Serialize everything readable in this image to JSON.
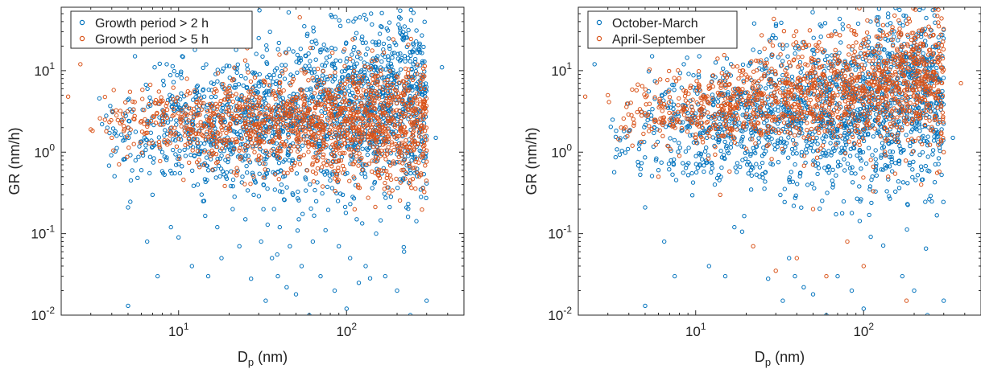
{
  "chart_data": [
    {
      "type": "scatter",
      "xlabel": "D",
      "xlabel_sub": "p",
      "xlabel_unit": " (nm)",
      "ylabel": "GR (nm/h)",
      "xscale": "log",
      "yscale": "log",
      "xlim": [
        2,
        500
      ],
      "ylim": [
        0.01,
        60
      ],
      "x_tick_labels": [
        {
          "value": 10,
          "base": "10",
          "exp": "1"
        },
        {
          "value": 100,
          "base": "10",
          "exp": "2"
        }
      ],
      "y_tick_labels": [
        {
          "value": 0.01,
          "base": "10",
          "exp": "-2"
        },
        {
          "value": 0.1,
          "base": "10",
          "exp": "-1"
        },
        {
          "value": 1,
          "base": "10",
          "exp": "0"
        },
        {
          "value": 10,
          "base": "10",
          "exp": "1"
        }
      ],
      "legend_position": "top-left",
      "grid": false,
      "series": [
        {
          "name": "Growth period > 2 h",
          "color": "#0072BD",
          "points": [
            [
              3.5,
              2.2
            ],
            [
              4.2,
              1.8
            ],
            [
              4.8,
              3.0
            ],
            [
              5.2,
              0.45
            ],
            [
              5.0,
              0.21
            ],
            [
              5.0,
              0.013
            ],
            [
              5.5,
              15
            ],
            [
              6.0,
              0.6
            ],
            [
              6.5,
              0.08
            ],
            [
              7.0,
              0.3
            ],
            [
              7.2,
              11
            ],
            [
              7.5,
              0.03
            ],
            [
              8.0,
              1.0
            ],
            [
              8.5,
              12
            ],
            [
              9.0,
              0.12
            ],
            [
              9.5,
              0.55
            ],
            [
              10.0,
              0.09
            ],
            [
              10.5,
              15
            ],
            [
              11.0,
              0.9
            ],
            [
              12.0,
              0.04
            ],
            [
              12.5,
              18
            ],
            [
              13.0,
              0.4
            ],
            [
              14.0,
              0.25
            ],
            [
              15.0,
              0.03
            ],
            [
              15.5,
              22
            ],
            [
              16.0,
              0.6
            ],
            [
              17.0,
              0.12
            ],
            [
              18.0,
              0.05
            ],
            [
              19.0,
              0.8
            ],
            [
              20.0,
              1.3
            ],
            [
              21.0,
              0.2
            ],
            [
              22.0,
              18
            ],
            [
              23.0,
              0.07
            ],
            [
              24.0,
              0.5
            ],
            [
              25.0,
              0.15
            ],
            [
              26.0,
              0.9
            ],
            [
              27.0,
              0.028
            ],
            [
              28.0,
              0.3
            ],
            [
              29.0,
              1.2
            ],
            [
              30.0,
              25
            ],
            [
              31.0,
              0.08
            ],
            [
              32.0,
              0.4
            ],
            [
              33.0,
              0.015
            ],
            [
              34.0,
              0.6
            ],
            [
              35.0,
              30
            ],
            [
              36.0,
              0.05
            ],
            [
              37.0,
              0.2
            ],
            [
              38.0,
              0.9
            ],
            [
              39.0,
              0.03
            ],
            [
              40.0,
              0.12
            ],
            [
              42.0,
              0.5
            ],
            [
              44.0,
              0.022
            ],
            [
              46.0,
              0.07
            ],
            [
              48.0,
              0.3
            ],
            [
              50.0,
              0.018
            ],
            [
              52.0,
              0.15
            ],
            [
              54.0,
              0.04
            ],
            [
              56.0,
              35
            ],
            [
              58.0,
              0.6
            ],
            [
              60.0,
              0.01
            ],
            [
              63.0,
              0.08
            ],
            [
              66.0,
              0.25
            ],
            [
              70.0,
              0.03
            ],
            [
              75.0,
              0.11
            ],
            [
              80.0,
              0.45
            ],
            [
              85.0,
              0.02
            ],
            [
              90.0,
              0.07
            ],
            [
              95.0,
              0.3
            ],
            [
              100.0,
              0.012
            ],
            [
              105.0,
              0.05
            ],
            [
              110.0,
              40
            ],
            [
              115.0,
              0.15
            ],
            [
              120.0,
              45
            ],
            [
              130.0,
              0.04
            ],
            [
              140.0,
              50
            ],
            [
              150.0,
              0.1
            ],
            [
              160.0,
              35
            ],
            [
              170.0,
              0.03
            ],
            [
              180.0,
              20
            ],
            [
              200.0,
              0.02
            ],
            [
              220.0,
              0.06
            ],
            [
              240.0,
              0.01
            ],
            [
              250.0,
              12
            ],
            [
              300.0,
              0.015
            ],
            [
              340.0,
              1.5
            ],
            [
              370.0,
              11
            ]
          ]
        },
        {
          "name": "Growth period > 5 h",
          "color": "#D95319",
          "points": [
            [
              2.2,
              4.8
            ],
            [
              2.6,
              12
            ],
            [
              3.0,
              1.9
            ],
            [
              3.4,
              2.6
            ],
            [
              4.0,
              1.5
            ],
            [
              4.5,
              3.2
            ],
            [
              5.0,
              2.0
            ],
            [
              6.0,
              2.4
            ],
            [
              7.0,
              1.3
            ],
            [
              8.0,
              2.8
            ],
            [
              9.0,
              1.7
            ],
            [
              10.0,
              3.0
            ],
            [
              12.0,
              2.2
            ],
            [
              14.0,
              1.6
            ],
            [
              16.0,
              2.9
            ],
            [
              18.0,
              2.0
            ],
            [
              20.0,
              1.4
            ],
            [
              22.0,
              3.3
            ],
            [
              25.0,
              2.5
            ],
            [
              28.0,
              1.8
            ],
            [
              30.0,
              4.0
            ],
            [
              35.0,
              2.7
            ],
            [
              40.0,
              1.5
            ],
            [
              45.0,
              3.5
            ],
            [
              50.0,
              2.2
            ],
            [
              55.0,
              4.5
            ],
            [
              60.0,
              1.9
            ],
            [
              70.0,
              5.5
            ],
            [
              80.0,
              3.0
            ],
            [
              90.0,
              6.0
            ],
            [
              100.0,
              2.4
            ],
            [
              120.0,
              7.0
            ],
            [
              140.0,
              3.5
            ],
            [
              160.0,
              9.0
            ],
            [
              180.0,
              4.0
            ],
            [
              200.0,
              1.2
            ],
            [
              220.0,
              5.0
            ],
            [
              240.0,
              0.45
            ]
          ]
        }
      ],
      "legend": [
        "Growth period > 2 h",
        "Growth period > 5 h"
      ]
    },
    {
      "type": "scatter",
      "xlabel": "D",
      "xlabel_sub": "p",
      "xlabel_unit": " (nm)",
      "ylabel": "GR (nm/h)",
      "xscale": "log",
      "yscale": "log",
      "xlim": [
        2,
        500
      ],
      "ylim": [
        0.01,
        60
      ],
      "x_tick_labels": [
        {
          "value": 10,
          "base": "10",
          "exp": "1"
        },
        {
          "value": 100,
          "base": "10",
          "exp": "2"
        }
      ],
      "y_tick_labels": [
        {
          "value": 0.01,
          "base": "10",
          "exp": "-2"
        },
        {
          "value": 0.1,
          "base": "10",
          "exp": "-1"
        },
        {
          "value": 1,
          "base": "10",
          "exp": "0"
        },
        {
          "value": 10,
          "base": "10",
          "exp": "1"
        }
      ],
      "legend_position": "top-left",
      "grid": false,
      "series": [
        {
          "name": "October-March",
          "color": "#0072BD",
          "points": [
            [
              2.5,
              12
            ],
            [
              3.2,
              2.5
            ],
            [
              4.0,
              1.8
            ],
            [
              5.0,
              0.21
            ],
            [
              5.0,
              0.013
            ],
            [
              5.5,
              15
            ],
            [
              6.0,
              0.6
            ],
            [
              6.5,
              0.08
            ],
            [
              7.5,
              0.03
            ],
            [
              8.5,
              12
            ],
            [
              9.5,
              0.55
            ],
            [
              10.5,
              15
            ],
            [
              12.0,
              0.04
            ],
            [
              13.0,
              0.4
            ],
            [
              15.0,
              0.03
            ],
            [
              17.0,
              0.12
            ],
            [
              19.0,
              0.8
            ],
            [
              22.0,
              18
            ],
            [
              24.0,
              0.5
            ],
            [
              27.0,
              0.028
            ],
            [
              30.0,
              25
            ],
            [
              33.0,
              0.015
            ],
            [
              36.0,
              0.05
            ],
            [
              39.0,
              0.03
            ],
            [
              44.0,
              0.022
            ],
            [
              50.0,
              0.018
            ],
            [
              56.0,
              35
            ],
            [
              60.0,
              0.01
            ],
            [
              70.0,
              0.03
            ],
            [
              85.0,
              0.02
            ],
            [
              100.0,
              0.012
            ],
            [
              110.0,
              40
            ],
            [
              120.0,
              45
            ],
            [
              140.0,
              50
            ],
            [
              170.0,
              0.03
            ],
            [
              200.0,
              0.02
            ],
            [
              240.0,
              0.01
            ],
            [
              300.0,
              0.015
            ],
            [
              340.0,
              1.5
            ]
          ]
        },
        {
          "name": "April-September",
          "color": "#D95319",
          "points": [
            [
              2.2,
              4.8
            ],
            [
              3.0,
              5.0
            ],
            [
              3.6,
              2.0
            ],
            [
              4.2,
              1.2
            ],
            [
              5.0,
              3.0
            ],
            [
              6.0,
              0.5
            ],
            [
              7.0,
              2.5
            ],
            [
              8.0,
              0.9
            ],
            [
              9.0,
              4.0
            ],
            [
              10.0,
              1.5
            ],
            [
              12.0,
              6.0
            ],
            [
              14.0,
              0.3
            ],
            [
              16.0,
              3.5
            ],
            [
              18.0,
              8.0
            ],
            [
              20.0,
              1.1
            ],
            [
              22.0,
              0.07
            ],
            [
              25.0,
              5.0
            ],
            [
              28.0,
              2.0
            ],
            [
              30.0,
              0.035
            ],
            [
              35.0,
              9.0
            ],
            [
              40.0,
              0.05
            ],
            [
              45.0,
              12
            ],
            [
              50.0,
              0.2
            ],
            [
              55.0,
              3.0
            ],
            [
              60.0,
              0.03
            ],
            [
              70.0,
              15
            ],
            [
              80.0,
              0.08
            ],
            [
              90.0,
              6.0
            ],
            [
              100.0,
              0.04
            ],
            [
              120.0,
              20
            ],
            [
              140.0,
              0.5
            ],
            [
              160.0,
              8.0
            ],
            [
              180.0,
              0.015
            ],
            [
              200.0,
              25
            ],
            [
              220.0,
              0.4
            ],
            [
              250.0,
              6.0
            ],
            [
              300.0,
              1.0
            ],
            [
              380.0,
              7.0
            ]
          ]
        }
      ],
      "legend": [
        "October-March",
        "April-September"
      ]
    }
  ]
}
